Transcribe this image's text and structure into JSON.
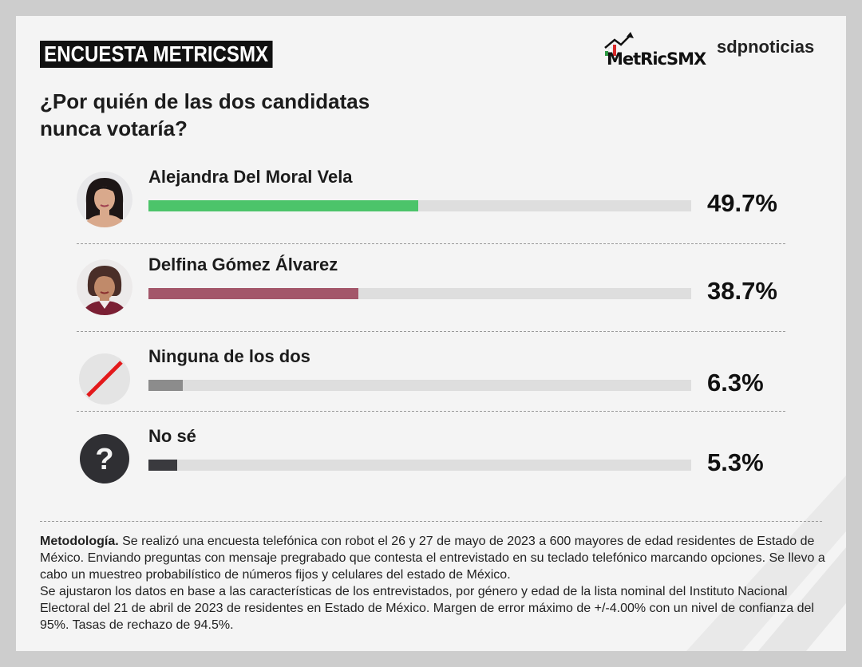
{
  "header": {
    "badge": "ENCUESTA METRICSMX",
    "logo_metrics": "MetRicSMX",
    "logo_sdp": "sdpnoticias"
  },
  "question_line1": "¿Por quién de las dos candidatas",
  "question_line2": "nunca votaría?",
  "chart_data": {
    "type": "bar",
    "orientation": "horizontal",
    "categories": [
      "Alejandra Del Moral Vela",
      "Delfina Gómez Álvarez",
      "Ninguna de los dos",
      "No sé"
    ],
    "values": [
      49.7,
      38.7,
      6.3,
      5.3
    ],
    "labels": [
      "49.7%",
      "38.7%",
      "6.3%",
      "5.3%"
    ],
    "colors": [
      "#4cc46a",
      "#a3566a",
      "#8c8c8c",
      "#3a3a3e"
    ],
    "xlim": [
      0,
      100
    ]
  },
  "icons": [
    "avatar-alejandra",
    "avatar-delfina",
    "no-sign-icon",
    "question-icon"
  ],
  "methodology": {
    "label": "Metodología.",
    "text": " Se realizó una encuesta telefónica con robot el 26 y 27 de mayo de 2023 a 600 mayores de edad residentes de Estado de México. Enviando preguntas con mensaje pregrabado que contesta el entrevistado en su teclado telefónico marcando opciones. Se llevo a cabo un muestreo probabilístico de números fijos y celulares del estado de México.",
    "text2": "Se ajustaron los datos en base a las características de los entrevistados, por género y edad de la lista nominal del Instituto Nacional Electoral del 21 de abril de 2023 de residentes en Estado de México. Margen de error máximo de +/-4.00% con un nivel de confianza del 95%. Tasas de rechazo de 94.5%."
  }
}
